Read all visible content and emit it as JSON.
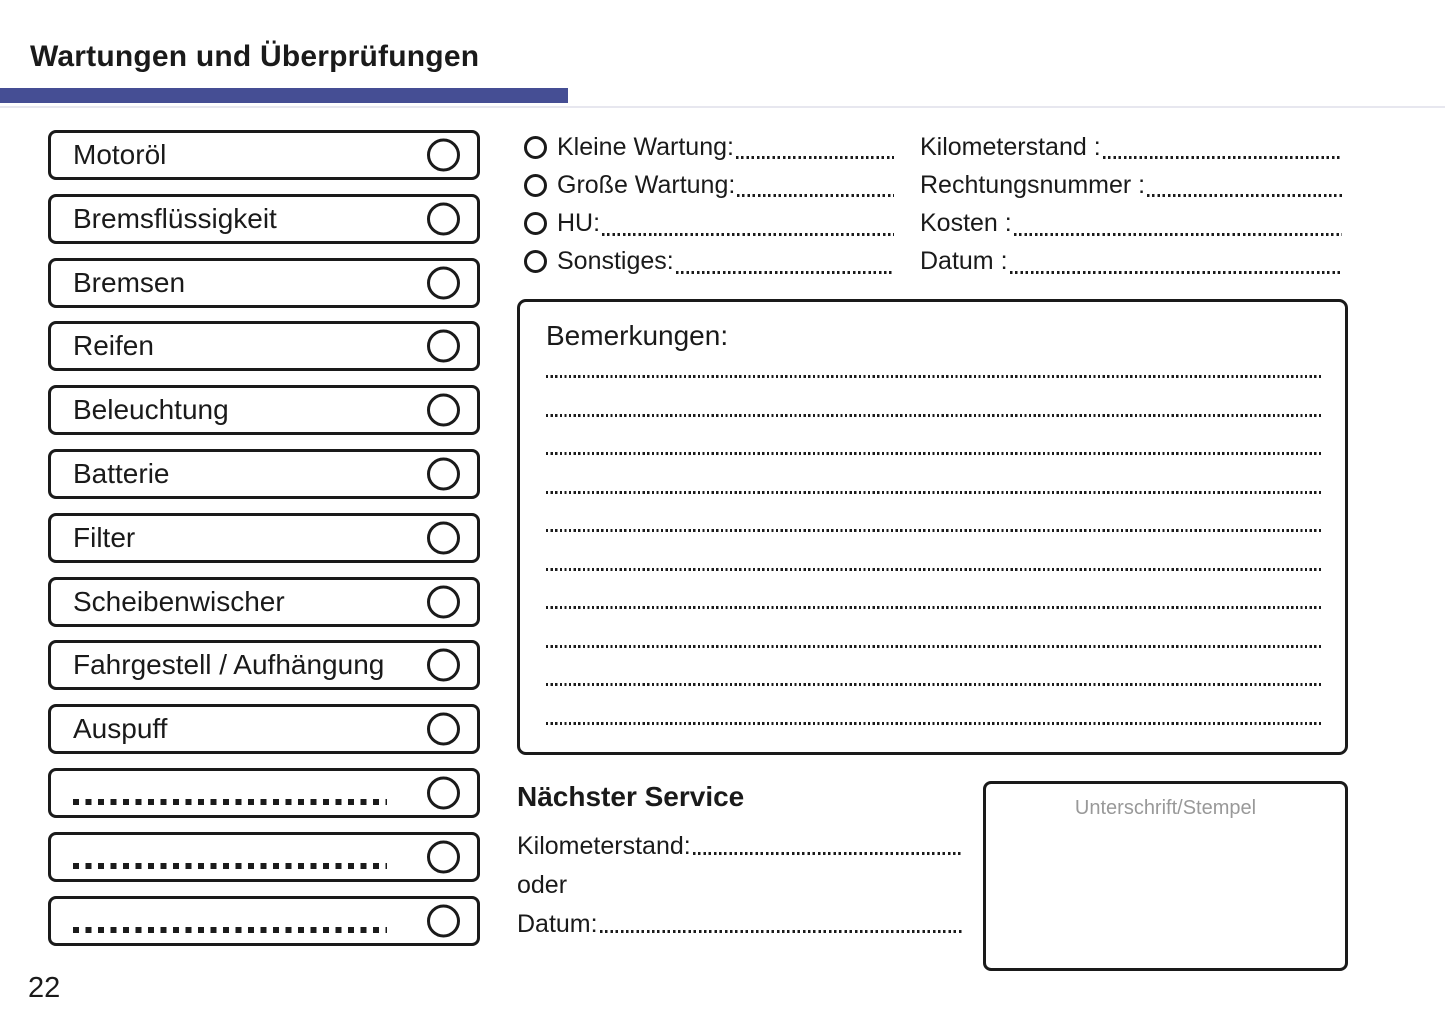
{
  "page": {
    "title": "Wartungen und Überprüfungen",
    "page_number": "22",
    "accent_color": "#454e94"
  },
  "checklist": {
    "items": [
      {
        "label": "Motoröl",
        "blank": false
      },
      {
        "label": "Bremsflüssigkeit",
        "blank": false
      },
      {
        "label": "Bremsen",
        "blank": false
      },
      {
        "label": "Reifen",
        "blank": false
      },
      {
        "label": "Beleuchtung",
        "blank": false
      },
      {
        "label": "Batterie",
        "blank": false
      },
      {
        "label": "Filter",
        "blank": false
      },
      {
        "label": "Scheibenwischer",
        "blank": false
      },
      {
        "label": "Fahrgestell / Aufhängung",
        "blank": false
      },
      {
        "label": "Auspuff",
        "blank": false
      },
      {
        "label": "",
        "blank": true
      },
      {
        "label": "",
        "blank": true
      },
      {
        "label": "",
        "blank": true
      }
    ]
  },
  "service_type": {
    "options": [
      {
        "label": "Kleine Wartung:"
      },
      {
        "label": "Große Wartung:"
      },
      {
        "label": "HU:"
      },
      {
        "label": "Sonstiges:"
      }
    ]
  },
  "service_details": {
    "fields": [
      {
        "label": "Kilometerstand :"
      },
      {
        "label": "Rechtungsnummer :"
      },
      {
        "label": "Kosten :"
      },
      {
        "label": "Datum :"
      }
    ]
  },
  "remarks": {
    "title": "Bemerkungen:",
    "line_count": 10
  },
  "next_service": {
    "title": "Nächster Service",
    "kilometerstand_label": "Kilometerstand:",
    "or_label": "oder",
    "datum_label": "Datum:"
  },
  "signature": {
    "label": "Unterschrift/Stempel"
  }
}
